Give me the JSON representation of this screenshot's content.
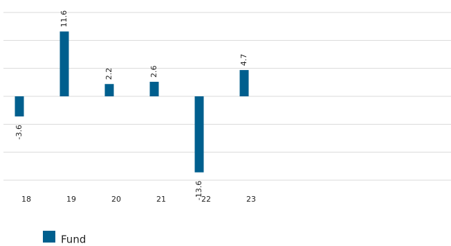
{
  "chart_data": {
    "type": "bar",
    "categories": [
      "18",
      "19",
      "20",
      "21",
      "22",
      "23",
      null,
      null,
      null,
      null
    ],
    "series": [
      {
        "name": "Fund",
        "color": "#005f8e",
        "values": [
          -3.6,
          11.6,
          2.2,
          2.6,
          -13.6,
          4.7,
          null,
          null,
          null,
          null
        ]
      }
    ],
    "ylim": [
      -15,
      15
    ],
    "yticks": [
      -15,
      -10,
      -5,
      0,
      5,
      10,
      15
    ],
    "grid": true,
    "legend": "bottom"
  }
}
